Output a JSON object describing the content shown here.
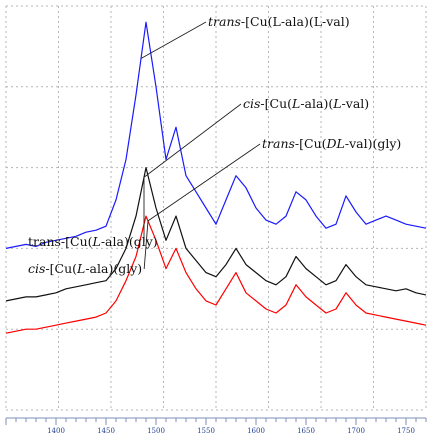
{
  "chart_data": {
    "type": "line",
    "title": "",
    "xlabel": "",
    "ylabel": "",
    "x_tick_labels": [
      "1400",
      "1450",
      "1500",
      "1550",
      "1600",
      "1650",
      "1700",
      "1750"
    ],
    "x": [
      1350,
      1360,
      1370,
      1380,
      1390,
      1400,
      1410,
      1420,
      1430,
      1440,
      1450,
      1460,
      1470,
      1480,
      1490,
      1500,
      1510,
      1520,
      1530,
      1540,
      1550,
      1560,
      1570,
      1580,
      1590,
      1600,
      1610,
      1620,
      1630,
      1640,
      1650,
      1660,
      1670,
      1680,
      1690,
      1700,
      1710,
      1720,
      1730,
      1740,
      1750,
      1760,
      1770
    ],
    "xlim": [
      1350,
      1770
    ],
    "ylim": [
      0,
      100
    ],
    "grid": true,
    "series": [
      {
        "id": "blue",
        "color": "#1a1aff",
        "values": [
          40,
          40.5,
          41,
          40.5,
          41.5,
          42,
          42.5,
          43,
          44,
          44.5,
          45.5,
          52,
          62,
          78,
          96,
          80,
          62,
          70,
          58,
          54,
          50,
          46,
          52,
          58,
          55,
          50,
          47,
          46,
          48,
          54,
          52,
          48,
          45,
          46,
          53,
          49,
          46,
          47,
          48,
          47,
          46,
          45.5,
          45
        ]
      },
      {
        "id": "black",
        "color": "#111111",
        "values": [
          27,
          27.5,
          28,
          28,
          28.5,
          29,
          30,
          30.5,
          31,
          31.5,
          32,
          35,
          40,
          48,
          60,
          50,
          42,
          48,
          40,
          37,
          34,
          33,
          36,
          40,
          36,
          34,
          32,
          31,
          33,
          38,
          35,
          33,
          31,
          32,
          36,
          33,
          31,
          30.5,
          30,
          29.5,
          30,
          29,
          28.5
        ]
      },
      {
        "id": "red",
        "color": "#ff0000",
        "values": [
          19,
          19.5,
          20,
          20,
          20.5,
          21,
          21.5,
          22,
          22.5,
          23,
          24,
          27,
          32,
          38,
          48,
          42,
          35,
          40,
          34,
          30,
          27,
          26,
          30,
          34,
          29,
          27,
          25,
          24,
          26,
          31,
          28,
          26,
          24,
          25,
          29,
          26,
          24,
          23.5,
          23,
          22.5,
          22,
          21.5,
          21
        ]
      }
    ],
    "annotations": [
      {
        "parts": [
          {
            "text": "trans",
            "italic": true
          },
          {
            "text": "-[Cu(L-ala)(L-val)",
            "italic": false
          }
        ],
        "target": "blue",
        "target_x": 1485
      },
      {
        "parts": [
          {
            "text": "cis",
            "italic": true
          },
          {
            "text": "-[Cu(",
            "italic": false
          },
          {
            "text": "L",
            "italic": true
          },
          {
            "text": "-ala)(",
            "italic": false
          },
          {
            "text": "L",
            "italic": true
          },
          {
            "text": "-val)",
            "italic": false
          }
        ],
        "target": "black",
        "target_x": 1488
      },
      {
        "parts": [
          {
            "text": "trans",
            "italic": true
          },
          {
            "text": "-[Cu(",
            "italic": false
          },
          {
            "text": "DL",
            "italic": true
          },
          {
            "text": "-val)(gly)",
            "italic": false
          }
        ],
        "target": "red",
        "target_x": 1492
      },
      {
        "parts": [
          {
            "text": "trans-[Cu(",
            "italic": false
          },
          {
            "text": "L",
            "italic": true
          },
          {
            "text": "-ala)(gly)",
            "italic": false
          }
        ],
        "target": "black",
        "target_x": 1488
      },
      {
        "parts": [
          {
            "text": "cis",
            "italic": true
          },
          {
            "text": "-[Cu(",
            "italic": false
          },
          {
            "text": "L",
            "italic": true
          },
          {
            "text": "-ala)(gly)",
            "italic": false
          }
        ],
        "target": "red",
        "target_x": 1492
      }
    ]
  }
}
